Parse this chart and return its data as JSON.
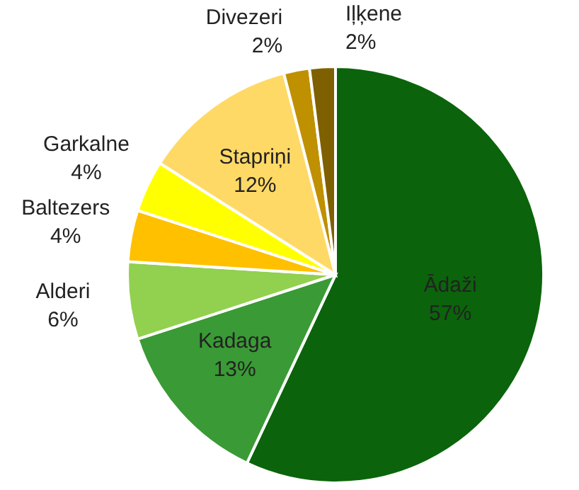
{
  "chart_data": {
    "type": "pie",
    "categories": [
      "Ādaži",
      "Kadaga",
      "Alderi",
      "Baltezers",
      "Garkalne",
      "Stapriņi",
      "Divezeri",
      "Iļķene"
    ],
    "values": [
      57,
      13,
      6,
      4,
      4,
      12,
      2,
      2
    ],
    "colors": [
      "#0b640b",
      "#3a9a35",
      "#92d050",
      "#ffc000",
      "#ffff00",
      "#ffd966",
      "#bf9000",
      "#7f6000"
    ],
    "value_labels": [
      "57%",
      "13%",
      "6%",
      "4%",
      "4%",
      "12%",
      "2%",
      "2%"
    ]
  }
}
